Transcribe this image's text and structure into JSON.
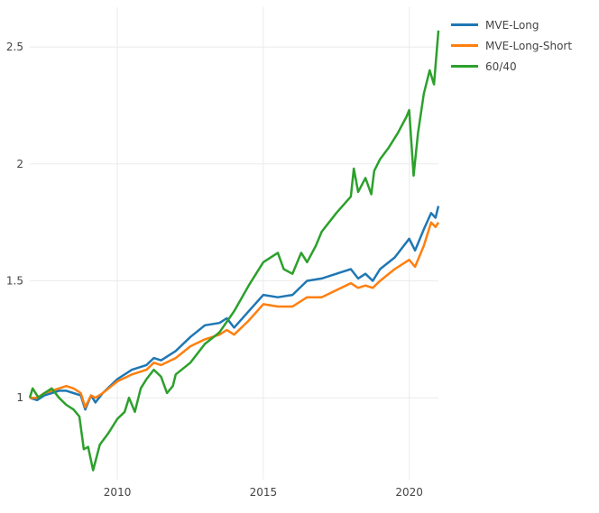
{
  "chart_data": {
    "type": "line",
    "title": "",
    "xlabel": "",
    "ylabel": "",
    "xlim": [
      2007.0,
      2021.0
    ],
    "ylim": [
      0.65,
      2.67
    ],
    "x_ticks": [
      2010,
      2015,
      2020
    ],
    "x_tick_labels": [
      "2010",
      "2015",
      "2020"
    ],
    "y_ticks": [
      1,
      1.5,
      2,
      2.5
    ],
    "y_tick_labels": [
      "1",
      "1.5",
      "2",
      "2.5"
    ],
    "grid": true,
    "legend_position": "top-right",
    "series": [
      {
        "name": "MVE-Long",
        "color": "#1f77b4",
        "points": [
          [
            2007.0,
            1.0
          ],
          [
            2007.25,
            0.99
          ],
          [
            2007.5,
            1.01
          ],
          [
            2007.75,
            1.02
          ],
          [
            2008.0,
            1.03
          ],
          [
            2008.25,
            1.03
          ],
          [
            2008.5,
            1.02
          ],
          [
            2008.75,
            1.01
          ],
          [
            2008.9,
            0.95
          ],
          [
            2009.1,
            1.01
          ],
          [
            2009.25,
            0.98
          ],
          [
            2009.5,
            1.02
          ],
          [
            2010.0,
            1.08
          ],
          [
            2010.5,
            1.12
          ],
          [
            2011.0,
            1.14
          ],
          [
            2011.25,
            1.17
          ],
          [
            2011.5,
            1.16
          ],
          [
            2012.0,
            1.2
          ],
          [
            2012.5,
            1.26
          ],
          [
            2013.0,
            1.31
          ],
          [
            2013.5,
            1.32
          ],
          [
            2013.75,
            1.34
          ],
          [
            2014.0,
            1.3
          ],
          [
            2014.5,
            1.37
          ],
          [
            2015.0,
            1.44
          ],
          [
            2015.5,
            1.43
          ],
          [
            2016.0,
            1.44
          ],
          [
            2016.5,
            1.5
          ],
          [
            2017.0,
            1.51
          ],
          [
            2017.5,
            1.53
          ],
          [
            2018.0,
            1.55
          ],
          [
            2018.25,
            1.51
          ],
          [
            2018.5,
            1.53
          ],
          [
            2018.75,
            1.5
          ],
          [
            2019.0,
            1.55
          ],
          [
            2019.5,
            1.6
          ],
          [
            2020.0,
            1.68
          ],
          [
            2020.2,
            1.63
          ],
          [
            2020.5,
            1.72
          ],
          [
            2020.75,
            1.79
          ],
          [
            2020.9,
            1.77
          ],
          [
            2021.0,
            1.82
          ]
        ]
      },
      {
        "name": "MVE-Long-Short",
        "color": "#ff7f0e",
        "points": [
          [
            2007.0,
            1.0
          ],
          [
            2007.25,
            1.0
          ],
          [
            2007.5,
            1.02
          ],
          [
            2007.75,
            1.03
          ],
          [
            2008.0,
            1.04
          ],
          [
            2008.25,
            1.05
          ],
          [
            2008.5,
            1.04
          ],
          [
            2008.75,
            1.02
          ],
          [
            2008.9,
            0.96
          ],
          [
            2009.1,
            1.01
          ],
          [
            2009.25,
            1.0
          ],
          [
            2009.5,
            1.02
          ],
          [
            2010.0,
            1.07
          ],
          [
            2010.5,
            1.1
          ],
          [
            2011.0,
            1.12
          ],
          [
            2011.25,
            1.15
          ],
          [
            2011.5,
            1.14
          ],
          [
            2012.0,
            1.17
          ],
          [
            2012.5,
            1.22
          ],
          [
            2013.0,
            1.25
          ],
          [
            2013.5,
            1.27
          ],
          [
            2013.75,
            1.29
          ],
          [
            2014.0,
            1.27
          ],
          [
            2014.5,
            1.33
          ],
          [
            2015.0,
            1.4
          ],
          [
            2015.5,
            1.39
          ],
          [
            2016.0,
            1.39
          ],
          [
            2016.5,
            1.43
          ],
          [
            2017.0,
            1.43
          ],
          [
            2017.5,
            1.46
          ],
          [
            2018.0,
            1.49
          ],
          [
            2018.25,
            1.47
          ],
          [
            2018.5,
            1.48
          ],
          [
            2018.75,
            1.47
          ],
          [
            2019.0,
            1.5
          ],
          [
            2019.5,
            1.55
          ],
          [
            2020.0,
            1.59
          ],
          [
            2020.2,
            1.56
          ],
          [
            2020.5,
            1.65
          ],
          [
            2020.75,
            1.75
          ],
          [
            2020.9,
            1.73
          ],
          [
            2021.0,
            1.75
          ]
        ]
      },
      {
        "name": "60/40",
        "color": "#2ca02c",
        "points": [
          [
            2007.0,
            1.0
          ],
          [
            2007.1,
            1.04
          ],
          [
            2007.3,
            1.0
          ],
          [
            2007.5,
            1.02
          ],
          [
            2007.75,
            1.04
          ],
          [
            2008.0,
            1.0
          ],
          [
            2008.25,
            0.97
          ],
          [
            2008.5,
            0.95
          ],
          [
            2008.7,
            0.92
          ],
          [
            2008.85,
            0.78
          ],
          [
            2009.0,
            0.79
          ],
          [
            2009.17,
            0.69
          ],
          [
            2009.4,
            0.8
          ],
          [
            2009.7,
            0.85
          ],
          [
            2010.0,
            0.91
          ],
          [
            2010.25,
            0.94
          ],
          [
            2010.4,
            1.0
          ],
          [
            2010.6,
            0.94
          ],
          [
            2010.8,
            1.04
          ],
          [
            2011.0,
            1.08
          ],
          [
            2011.25,
            1.12
          ],
          [
            2011.5,
            1.09
          ],
          [
            2011.7,
            1.02
          ],
          [
            2011.9,
            1.05
          ],
          [
            2012.0,
            1.1
          ],
          [
            2012.5,
            1.15
          ],
          [
            2013.0,
            1.23
          ],
          [
            2013.5,
            1.28
          ],
          [
            2014.0,
            1.37
          ],
          [
            2014.5,
            1.48
          ],
          [
            2015.0,
            1.58
          ],
          [
            2015.5,
            1.62
          ],
          [
            2015.7,
            1.55
          ],
          [
            2016.0,
            1.53
          ],
          [
            2016.3,
            1.62
          ],
          [
            2016.5,
            1.58
          ],
          [
            2016.8,
            1.65
          ],
          [
            2017.0,
            1.71
          ],
          [
            2017.5,
            1.79
          ],
          [
            2018.0,
            1.86
          ],
          [
            2018.1,
            1.98
          ],
          [
            2018.25,
            1.88
          ],
          [
            2018.5,
            1.94
          ],
          [
            2018.7,
            1.87
          ],
          [
            2018.8,
            1.97
          ],
          [
            2019.0,
            2.02
          ],
          [
            2019.3,
            2.07
          ],
          [
            2019.6,
            2.13
          ],
          [
            2019.9,
            2.2
          ],
          [
            2020.0,
            2.23
          ],
          [
            2020.15,
            1.95
          ],
          [
            2020.3,
            2.13
          ],
          [
            2020.5,
            2.3
          ],
          [
            2020.7,
            2.4
          ],
          [
            2020.85,
            2.34
          ],
          [
            2021.0,
            2.57
          ]
        ]
      }
    ]
  }
}
